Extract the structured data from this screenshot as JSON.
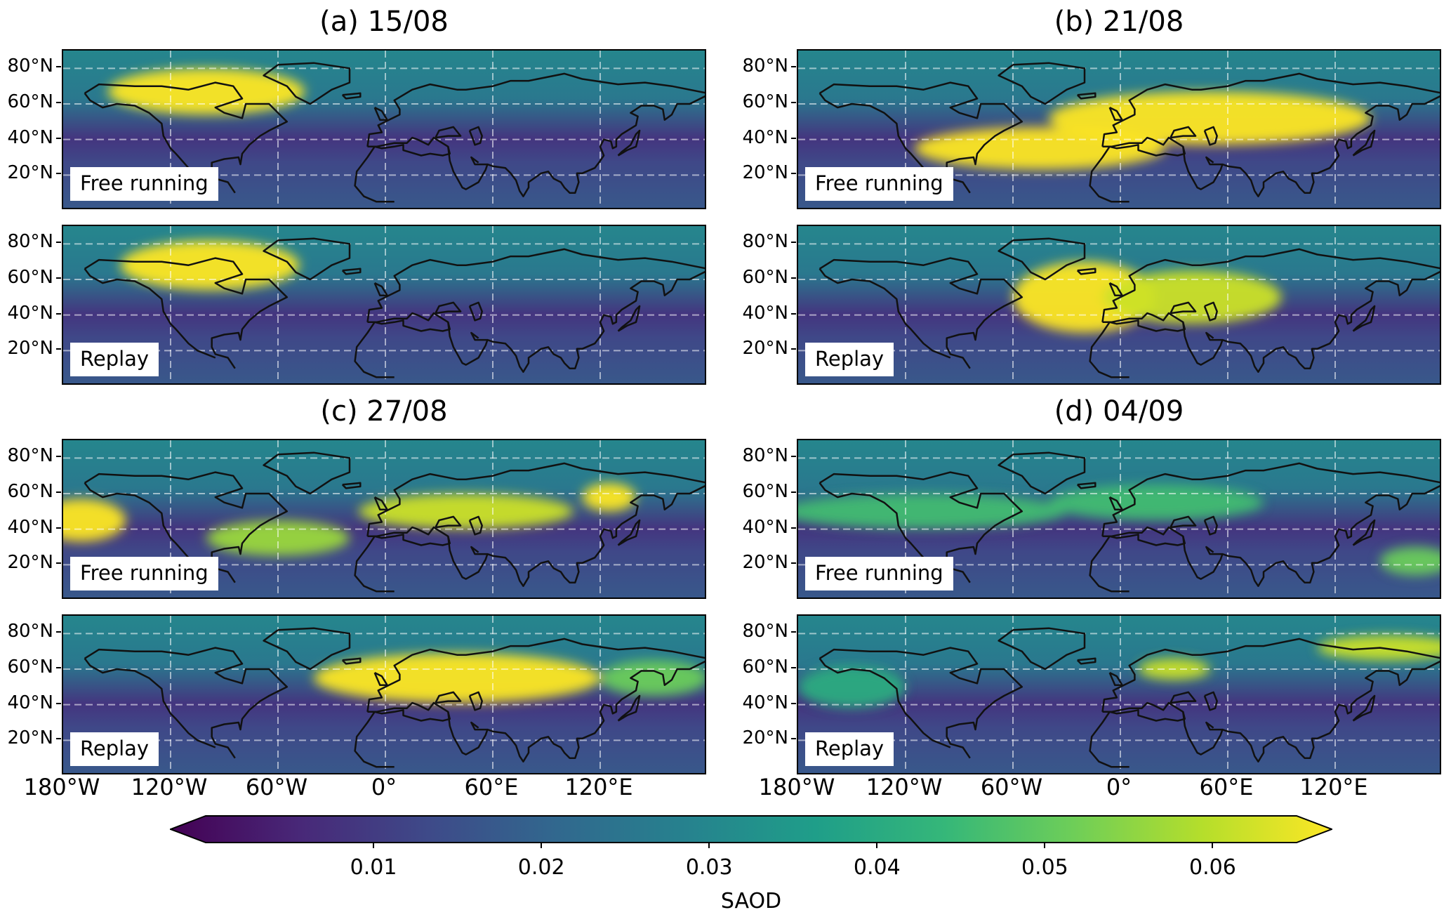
{
  "colors": {
    "viridis": [
      "#440154",
      "#482878",
      "#3e4a89",
      "#31688e",
      "#26828e",
      "#1f9e89",
      "#35b779",
      "#6ece58",
      "#b5de2b",
      "#fde725"
    ]
  },
  "chart_data": {
    "type": "heatmap",
    "colormap": "viridis",
    "variable": "SAOD",
    "colorbar": {
      "label": "SAOD",
      "ticks": [
        "0.01",
        "0.02",
        "0.03",
        "0.04",
        "0.05",
        "0.06"
      ],
      "tick_values": [
        0.01,
        0.02,
        0.03,
        0.04,
        0.05,
        0.06
      ],
      "range": [
        0.0,
        0.065
      ],
      "extend": "both"
    },
    "x_ticks": [
      "180°W",
      "120°W",
      "60°W",
      "0°",
      "60°E",
      "120°E"
    ],
    "x_tick_values": [
      -180,
      -120,
      -60,
      0,
      60,
      120
    ],
    "y_ticks": [
      "80°N",
      "60°N",
      "40°N",
      "20°N"
    ],
    "y_tick_values": [
      80,
      60,
      40,
      20
    ],
    "xlim": [
      -180,
      180
    ],
    "ylim": [
      0,
      90
    ],
    "grid": true,
    "panels": [
      {
        "title": "(a) 15/08",
        "maps": [
          {
            "label": "Free running",
            "plumes": [
              {
                "lon": -100,
                "lat": 67,
                "w": 55,
                "h": 13,
                "v": 0.065
              }
            ]
          },
          {
            "label": "Replay",
            "plumes": [
              {
                "lon": -98,
                "lat": 68,
                "w": 50,
                "h": 14,
                "v": 0.065
              }
            ]
          }
        ]
      },
      {
        "title": "(b) 21/08",
        "maps": [
          {
            "label": "Free running",
            "plumes": [
              {
                "lon": -45,
                "lat": 35,
                "w": 70,
                "h": 12,
                "v": 0.065
              },
              {
                "lon": 50,
                "lat": 52,
                "w": 90,
                "h": 15,
                "v": 0.065
              }
            ]
          },
          {
            "label": "Replay",
            "plumes": [
              {
                "lon": -20,
                "lat": 50,
                "w": 40,
                "h": 20,
                "v": 0.065
              },
              {
                "lon": 40,
                "lat": 50,
                "w": 50,
                "h": 15,
                "v": 0.06
              }
            ]
          }
        ]
      },
      {
        "title": "(c) 27/08",
        "maps": [
          {
            "label": "Free running",
            "plumes": [
              {
                "lon": -170,
                "lat": 45,
                "w": 25,
                "h": 12,
                "v": 0.065
              },
              {
                "lon": -60,
                "lat": 35,
                "w": 40,
                "h": 10,
                "v": 0.055
              },
              {
                "lon": 45,
                "lat": 50,
                "w": 60,
                "h": 10,
                "v": 0.06
              },
              {
                "lon": 125,
                "lat": 58,
                "w": 15,
                "h": 8,
                "v": 0.065
              }
            ]
          },
          {
            "label": "Replay",
            "plumes": [
              {
                "lon": 40,
                "lat": 55,
                "w": 80,
                "h": 14,
                "v": 0.065
              },
              {
                "lon": 150,
                "lat": 55,
                "w": 30,
                "h": 10,
                "v": 0.05
              }
            ]
          }
        ]
      },
      {
        "title": "(d) 04/09",
        "maps": [
          {
            "label": "Free running",
            "plumes": [
              {
                "lon": -110,
                "lat": 50,
                "w": 80,
                "h": 10,
                "v": 0.045
              },
              {
                "lon": 20,
                "lat": 55,
                "w": 60,
                "h": 10,
                "v": 0.045
              },
              {
                "lon": 165,
                "lat": 22,
                "w": 20,
                "h": 8,
                "v": 0.05
              }
            ]
          },
          {
            "label": "Replay",
            "plumes": [
              {
                "lon": 30,
                "lat": 60,
                "w": 20,
                "h": 6,
                "v": 0.06
              },
              {
                "lon": 150,
                "lat": 72,
                "w": 40,
                "h": 7,
                "v": 0.06
              },
              {
                "lon": -150,
                "lat": 50,
                "w": 30,
                "h": 12,
                "v": 0.04
              }
            ]
          }
        ]
      }
    ]
  }
}
